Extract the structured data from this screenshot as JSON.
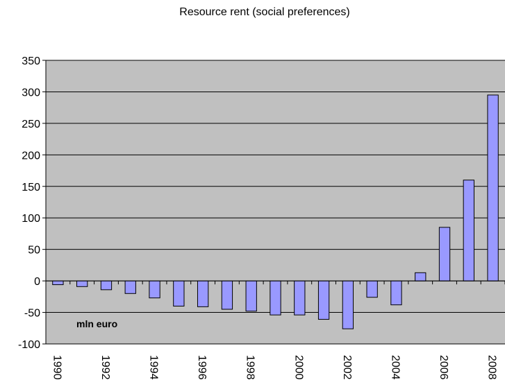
{
  "chart_data": {
    "type": "bar",
    "title": "Resource rent (social preferences)",
    "unit_label": "mln euro",
    "xlabel": "",
    "ylabel": "",
    "ylim": [
      -100,
      350
    ],
    "yticks": [
      350,
      300,
      250,
      200,
      150,
      100,
      50,
      0,
      -50,
      -100
    ],
    "grid": true,
    "legend": "none",
    "categories": [
      1990,
      1991,
      1992,
      1993,
      1994,
      1995,
      1996,
      1997,
      1998,
      1999,
      2000,
      2001,
      2002,
      2003,
      2004,
      2005,
      2006,
      2007,
      2008
    ],
    "xtick_labels": [
      "1990",
      "1992",
      "1994",
      "1996",
      "1998",
      "2000",
      "2002",
      "2004",
      "2006",
      "2008"
    ],
    "values": [
      -6,
      -9,
      -14,
      -20,
      -27,
      -40,
      -41,
      -45,
      -48,
      -54,
      -54,
      -61,
      -76,
      -26,
      -38,
      13,
      85,
      160,
      295
    ],
    "colors": {
      "bar_fill": "#9999ff",
      "bar_stroke": "#000000",
      "plot_background": "#c0c0c0",
      "gridline": "#000000"
    }
  }
}
